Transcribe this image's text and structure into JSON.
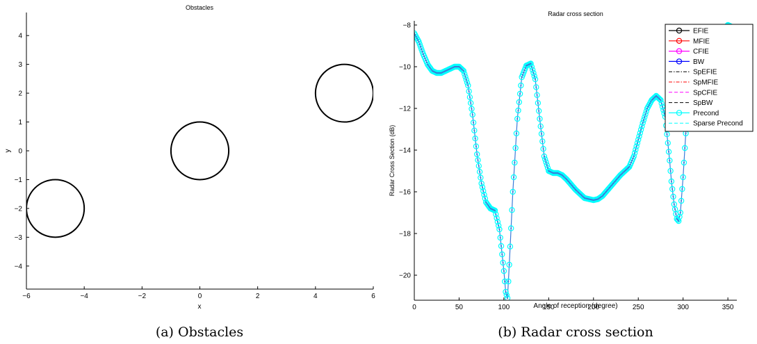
{
  "captions": [
    "(a) Obstacles",
    "(b) Radar cross section"
  ],
  "chart_data": [
    {
      "type": "scatter",
      "title": "Obstacles",
      "xlabel": "x",
      "ylabel": "y",
      "xlim": [
        -6,
        6
      ],
      "ylim": [
        -4.8,
        4.8
      ],
      "xticks": [
        -6,
        -4,
        -2,
        0,
        2,
        4,
        6
      ],
      "yticks": [
        -4,
        -3,
        -2,
        -1,
        0,
        1,
        2,
        3,
        4
      ],
      "grid": false,
      "circles": [
        {
          "cx": -5,
          "cy": -2,
          "r": 1
        },
        {
          "cx": 0,
          "cy": 0,
          "r": 1
        },
        {
          "cx": 5,
          "cy": 2,
          "r": 1
        }
      ],
      "stroke_color": "#000000"
    },
    {
      "type": "line",
      "title": "Radar cross section",
      "xlabel": "Angle of reception (degree)",
      "ylabel": "Radar Cross Section (dB)",
      "xlim": [
        0,
        360
      ],
      "ylim": [
        -21.2,
        -7.8
      ],
      "xticks": [
        0,
        50,
        100,
        150,
        200,
        250,
        300,
        350
      ],
      "yticks": [
        -20,
        -18,
        -16,
        -14,
        -12,
        -10,
        -8
      ],
      "grid": false,
      "legend_position": "top-right",
      "legend": [
        {
          "name": "EFIE",
          "color": "#000000",
          "style": "solid",
          "marker": "circle"
        },
        {
          "name": "MFIE",
          "color": "#ff0000",
          "style": "solid",
          "marker": "circle"
        },
        {
          "name": "CFIE",
          "color": "#ff00ff",
          "style": "solid",
          "marker": "circle"
        },
        {
          "name": "BW",
          "color": "#0000ff",
          "style": "solid",
          "marker": "circle"
        },
        {
          "name": "SpEFIE",
          "color": "#000000",
          "style": "dashdot",
          "marker": "none"
        },
        {
          "name": "SpMFIE",
          "color": "#ff0000",
          "style": "dashdot",
          "marker": "none"
        },
        {
          "name": "SpCFIE",
          "color": "#ff00ff",
          "style": "dashed",
          "marker": "none"
        },
        {
          "name": "SpBW",
          "color": "#000000",
          "style": "dashed",
          "marker": "none"
        },
        {
          "name": "Precond",
          "color": "#00ffff",
          "style": "solid",
          "marker": "circle"
        },
        {
          "name": "Sparse Precond",
          "color": "#00ffff",
          "style": "dashed",
          "marker": "none"
        }
      ],
      "curve": {
        "x": [
          0,
          5,
          10,
          15,
          20,
          25,
          30,
          35,
          40,
          45,
          50,
          55,
          60,
          65,
          70,
          75,
          80,
          85,
          90,
          95,
          100,
          102,
          104,
          106,
          110,
          115,
          120,
          125,
          130,
          135,
          140,
          145,
          150,
          155,
          160,
          165,
          170,
          180,
          190,
          200,
          205,
          210,
          220,
          230,
          240,
          245,
          250,
          255,
          260,
          265,
          270,
          275,
          280,
          285,
          287,
          290,
          293,
          295,
          297,
          300,
          303,
          306,
          310,
          315,
          320,
          325,
          330,
          335,
          340,
          345,
          350,
          355,
          360
        ],
        "y": [
          -8.4,
          -8.8,
          -9.4,
          -9.9,
          -10.2,
          -10.3,
          -10.3,
          -10.2,
          -10.1,
          -10.0,
          -10.0,
          -10.2,
          -10.9,
          -12.3,
          -14.2,
          -15.6,
          -16.5,
          -16.8,
          -16.9,
          -17.8,
          -19.8,
          -20.8,
          -21.1,
          -19.5,
          -16.0,
          -12.5,
          -10.5,
          -9.95,
          -9.85,
          -10.6,
          -12.5,
          -14.3,
          -15.0,
          -15.1,
          -15.1,
          -15.2,
          -15.4,
          -15.9,
          -16.3,
          -16.4,
          -16.35,
          -16.2,
          -15.7,
          -15.2,
          -14.8,
          -14.3,
          -13.5,
          -12.7,
          -12.0,
          -11.6,
          -11.4,
          -11.6,
          -12.4,
          -14.5,
          -15.5,
          -16.6,
          -17.3,
          -17.4,
          -17.0,
          -15.3,
          -13.2,
          -11.7,
          -10.5,
          -9.8,
          -9.5,
          -9.3,
          -9.1,
          -8.9,
          -8.5,
          -8.2,
          -8.0,
          -8.1,
          -8.4
        ],
        "color": "#00ffff",
        "marker_color": "#3a7ad8",
        "marker": "circle"
      }
    }
  ]
}
